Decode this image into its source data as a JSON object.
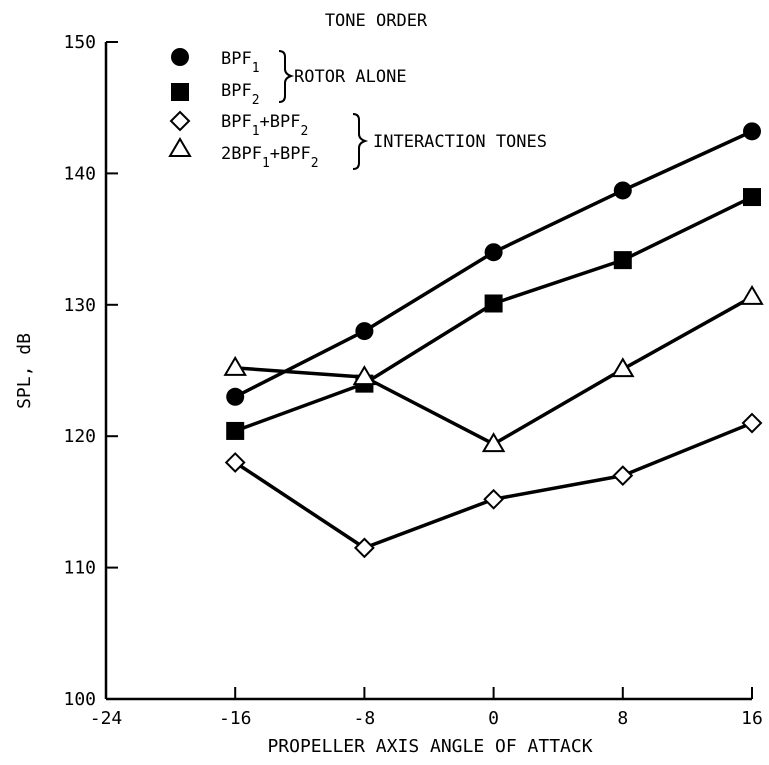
{
  "chart_data": {
    "type": "line",
    "title": "",
    "xlabel": "PROPELLER AXIS ANGLE OF ATTACK",
    "ylabel": "SPL, dB",
    "xlim": [
      -24,
      16
    ],
    "ylim": [
      100,
      150
    ],
    "x_ticks": [
      "-24",
      "-16",
      "-8",
      "0",
      "8",
      "16"
    ],
    "y_ticks": [
      "100",
      "110",
      "120",
      "130",
      "140",
      "150"
    ],
    "grid": false,
    "legend": {
      "position": "top-left",
      "title": "TONE ORDER",
      "groups": [
        {
          "label": "ROTOR ALONE",
          "series": [
            0,
            1
          ]
        },
        {
          "label": "INTERACTION TONES",
          "series": [
            2,
            3
          ]
        }
      ]
    },
    "series": [
      {
        "name": "BPF1",
        "label_main": "BPF",
        "label_sub": "1",
        "marker": "circle-filled",
        "x": [
          -16,
          -8,
          0,
          8,
          16
        ],
        "y": [
          123,
          128,
          134,
          138.7,
          143.2
        ]
      },
      {
        "name": "BPF2",
        "label_main": "BPF",
        "label_sub": "2",
        "marker": "square-filled",
        "x": [
          -16,
          -8,
          0,
          8,
          16
        ],
        "y": [
          120.4,
          124,
          130.1,
          133.4,
          138.2
        ]
      },
      {
        "name": "BPF1+BPF2",
        "label_parts": [
          "BPF",
          "1",
          "+BPF",
          "2"
        ],
        "marker": "diamond-open",
        "x": [
          -16,
          -8,
          0,
          8,
          16
        ],
        "y": [
          118,
          111.5,
          115.2,
          117,
          121
        ]
      },
      {
        "name": "2BPF1+BPF2",
        "label_parts": [
          "2BPF",
          "1",
          "+BPF",
          "2"
        ],
        "marker": "triangle-open",
        "x": [
          -16,
          -8,
          0,
          8,
          16
        ],
        "y": [
          125.2,
          124.5,
          119.4,
          125.1,
          130.6
        ]
      }
    ]
  }
}
